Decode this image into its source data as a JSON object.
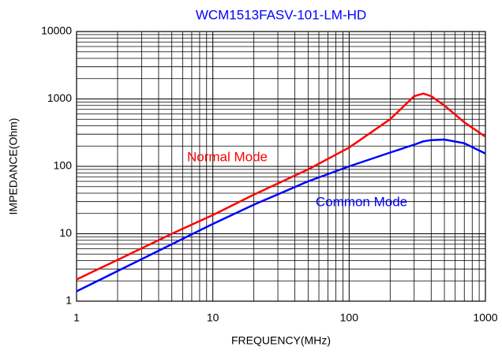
{
  "chart_data": {
    "type": "line",
    "title": "WCM1513FASV-101-LM-HD",
    "xlabel": "FREQUENCY(MHz)",
    "ylabel": "IMPEDANCE(Ohm)",
    "x": [
      1,
      2,
      5,
      10,
      20,
      50,
      100,
      200,
      300,
      350,
      400,
      500,
      700,
      1000
    ],
    "series": [
      {
        "name": "Normal Mode",
        "color": "#ff0000",
        "values": [
          2.1,
          4.1,
          10,
          19,
          38,
          90,
          190,
          500,
          1100,
          1200,
          1100,
          800,
          450,
          275
        ]
      },
      {
        "name": "Common Mode",
        "color": "#0000ff",
        "values": [
          1.4,
          2.8,
          7,
          14,
          27,
          60,
          100,
          160,
          210,
          235,
          245,
          250,
          220,
          155
        ]
      }
    ],
    "xlim": [
      1,
      1000
    ],
    "ylim": [
      1,
      10000
    ],
    "xticks": [
      1,
      10,
      100,
      1000
    ],
    "yticks": [
      1,
      10,
      100,
      1000,
      10000
    ],
    "xscale": "log",
    "yscale": "log",
    "grid": true,
    "minor_grid": true
  }
}
